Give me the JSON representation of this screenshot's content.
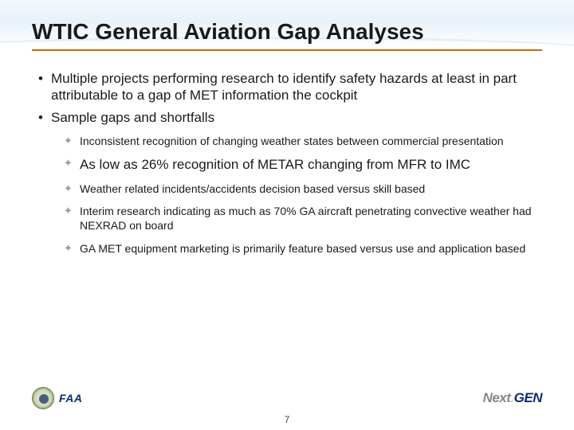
{
  "title": "WTIC General Aviation Gap Analyses",
  "bullets_l1": [
    "Multiple projects performing research to identify safety hazards at least in part attributable to a gap of MET information the cockpit",
    "Sample gaps and shortfalls"
  ],
  "bullets_l2": [
    {
      "text": "Inconsistent recognition of changing weather states between commercial presentation",
      "large": false
    },
    {
      "text": "As low as 26% recognition of METAR changing from MFR to IMC",
      "large": true
    },
    {
      "text": "Weather related incidents/accidents decision based versus skill based",
      "large": false
    },
    {
      "text": "Interim research indicating as much as 70% GA aircraft penetrating convective weather had NEXRAD on board",
      "large": false
    },
    {
      "text": "GA MET equipment marketing is primarily feature based versus use and application based",
      "large": false
    }
  ],
  "footer": {
    "faa": "FAA",
    "nextgen_next": "Next",
    "nextgen_gen": "GEN"
  },
  "page_number": "7",
  "colors": {
    "title_underline": "#c56a00",
    "text": "#1a1a1a",
    "faa_blue": "#0b2d6b"
  }
}
